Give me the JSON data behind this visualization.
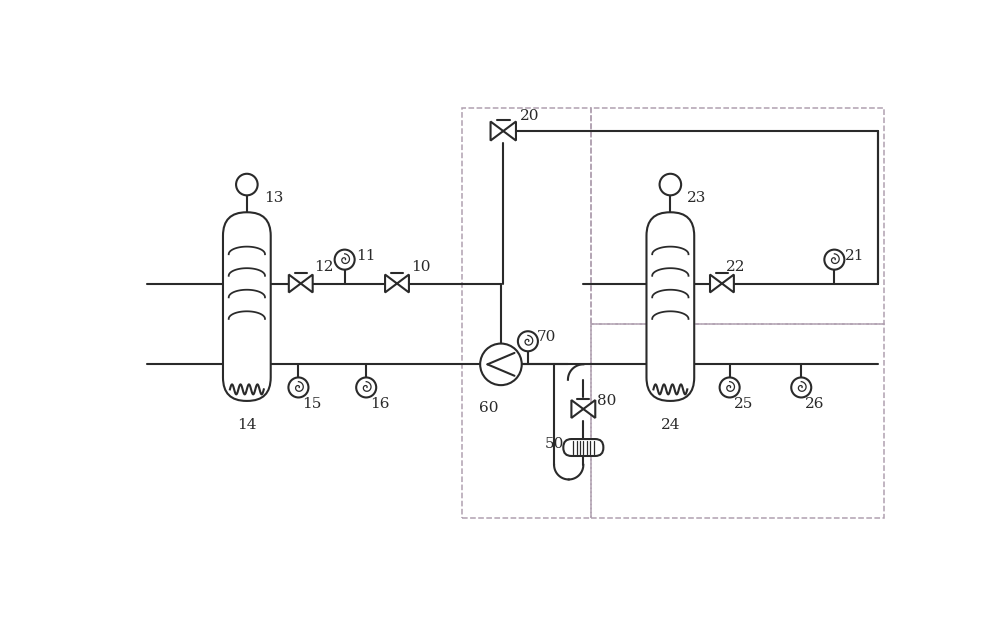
{
  "bg_color": "#ffffff",
  "line_color": "#2a2a2a",
  "dashed_color": "#b0a0b0",
  "purple_color": "#cc88cc",
  "lw": 1.5,
  "lw_thin": 0.9,
  "fig_width": 10.0,
  "fig_height": 6.3,
  "dpi": 100,
  "label_fontsize": 11
}
